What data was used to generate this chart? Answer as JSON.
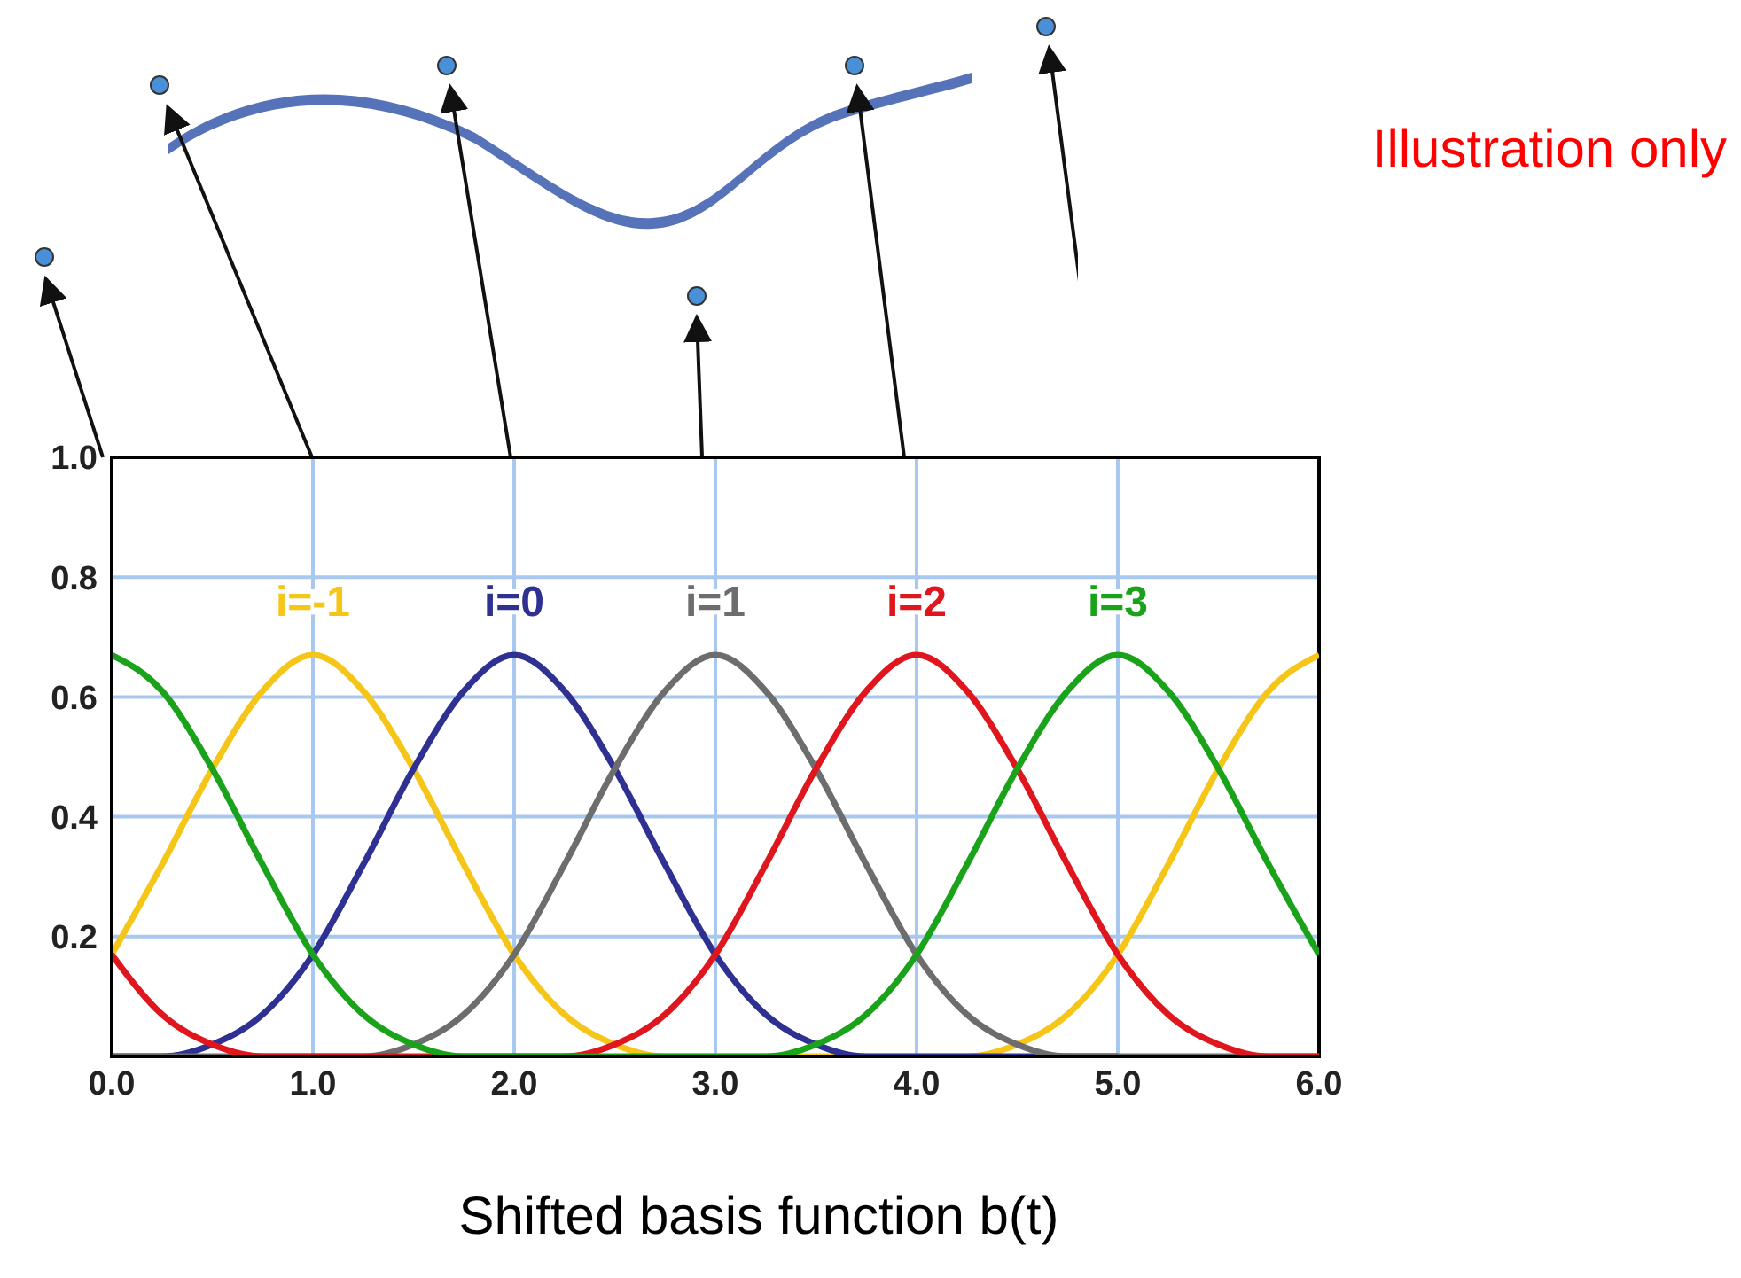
{
  "chart_data": {
    "type": "line",
    "xlabel": "Shifted basis function b(t)",
    "annotations": [
      "Illustration only"
    ],
    "x": [
      0,
      0.25,
      0.5,
      0.75,
      1,
      1.25,
      1.5,
      1.75,
      2,
      2.25,
      2.5,
      2.75,
      3,
      3.25,
      3.5,
      3.75,
      4,
      4.25,
      4.5,
      4.75,
      5,
      5.25,
      5.5,
      5.75,
      6
    ],
    "series": [
      {
        "name": "i=-1",
        "color": "#f5c518",
        "values": [
          0.17,
          0.32,
          0.48,
          0.61,
          0.67,
          0.61,
          0.48,
          0.32,
          0.17,
          0.07,
          0.02,
          0,
          0,
          0,
          0,
          0,
          0,
          0,
          0.02,
          0.07,
          0.17,
          0.32,
          0.48,
          0.61,
          0.67
        ]
      },
      {
        "name": "i=0",
        "color": "#2e3192",
        "values": [
          0,
          0,
          0.02,
          0.07,
          0.17,
          0.32,
          0.48,
          0.61,
          0.67,
          0.61,
          0.48,
          0.32,
          0.17,
          0.07,
          0.02,
          0,
          0,
          0,
          0,
          0,
          0,
          null,
          null,
          null,
          null
        ]
      },
      {
        "name": "i=1",
        "color": "#6d6d6d",
        "values": [
          0,
          0,
          0,
          0,
          0,
          0,
          0.02,
          0.07,
          0.17,
          0.32,
          0.48,
          0.61,
          0.67,
          0.61,
          0.48,
          0.32,
          0.17,
          0.07,
          0.02,
          0,
          0,
          0,
          0,
          0,
          0
        ]
      },
      {
        "name": "i=2",
        "color": "#e0161e",
        "values": [
          0.17,
          0.07,
          0.02,
          0,
          0,
          0,
          0,
          0,
          0,
          0,
          0.02,
          0.07,
          0.17,
          0.32,
          0.48,
          0.61,
          0.67,
          0.61,
          0.48,
          0.32,
          0.17,
          0.07,
          0.02,
          0,
          0
        ]
      },
      {
        "name": "i=3",
        "color": "#1aa31a",
        "values": [
          0.67,
          0.61,
          0.48,
          0.32,
          0.17,
          0.07,
          0.02,
          0,
          0,
          0,
          0,
          0,
          0,
          0,
          0.02,
          0.07,
          0.17,
          0.32,
          0.48,
          0.61,
          0.67,
          0.61,
          0.48,
          0.32,
          0.17
        ]
      }
    ],
    "xlim": [
      0,
      6
    ],
    "xticks": [
      {
        "value": 0,
        "label": "0.0"
      },
      {
        "value": 1,
        "label": "1.0"
      },
      {
        "value": 2,
        "label": "2.0"
      },
      {
        "value": 3,
        "label": "3.0"
      },
      {
        "value": 4,
        "label": "4.0"
      },
      {
        "value": 5,
        "label": "5.0"
      },
      {
        "value": 6,
        "label": "6.0"
      }
    ],
    "ylim": [
      0,
      1
    ],
    "yticks": [
      {
        "value": 0,
        "label": null
      },
      0.2,
      0.4,
      0.6,
      0.8,
      {
        "value": 1,
        "label": "1.0"
      }
    ],
    "grid": true,
    "marker": "none",
    "line_style": "solid"
  }
}
